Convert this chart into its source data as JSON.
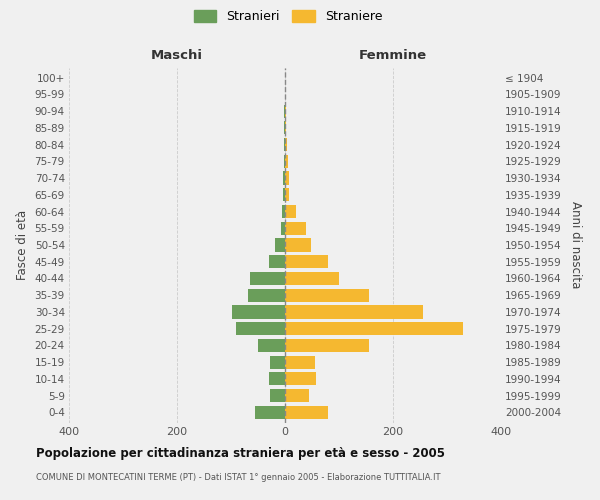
{
  "age_groups": [
    "0-4",
    "5-9",
    "10-14",
    "15-19",
    "20-24",
    "25-29",
    "30-34",
    "35-39",
    "40-44",
    "45-49",
    "50-54",
    "55-59",
    "60-64",
    "65-69",
    "70-74",
    "75-79",
    "80-84",
    "85-89",
    "90-94",
    "95-99",
    "100+"
  ],
  "birth_years": [
    "2000-2004",
    "1995-1999",
    "1990-1994",
    "1985-1989",
    "1980-1984",
    "1975-1979",
    "1970-1974",
    "1965-1969",
    "1960-1964",
    "1955-1959",
    "1950-1954",
    "1945-1949",
    "1940-1944",
    "1935-1939",
    "1930-1934",
    "1925-1929",
    "1920-1924",
    "1915-1919",
    "1910-1914",
    "1905-1909",
    "≤ 1904"
  ],
  "maschi": [
    55,
    28,
    30,
    28,
    50,
    90,
    98,
    68,
    65,
    30,
    18,
    8,
    5,
    4,
    3,
    2,
    1,
    1,
    1,
    0,
    0
  ],
  "femmine": [
    80,
    45,
    58,
    55,
    155,
    330,
    255,
    155,
    100,
    80,
    48,
    38,
    20,
    8,
    7,
    5,
    3,
    2,
    2,
    0,
    0
  ],
  "maschi_color": "#6a9e5a",
  "femmine_color": "#f5b830",
  "bg_color": "#f0f0f0",
  "grid_color": "#cccccc",
  "title": "Popolazione per cittadinanza straniera per età e sesso - 2005",
  "subtitle": "COMUNE DI MONTECATINI TERME (PT) - Dati ISTAT 1° gennaio 2005 - Elaborazione TUTTITALIA.IT",
  "ylabel_left": "Fasce di età",
  "ylabel_right": "Anni di nascita",
  "header_maschi": "Maschi",
  "header_femmine": "Femmine",
  "legend_maschi": "Stranieri",
  "legend_femmine": "Straniere",
  "xlim": 400
}
